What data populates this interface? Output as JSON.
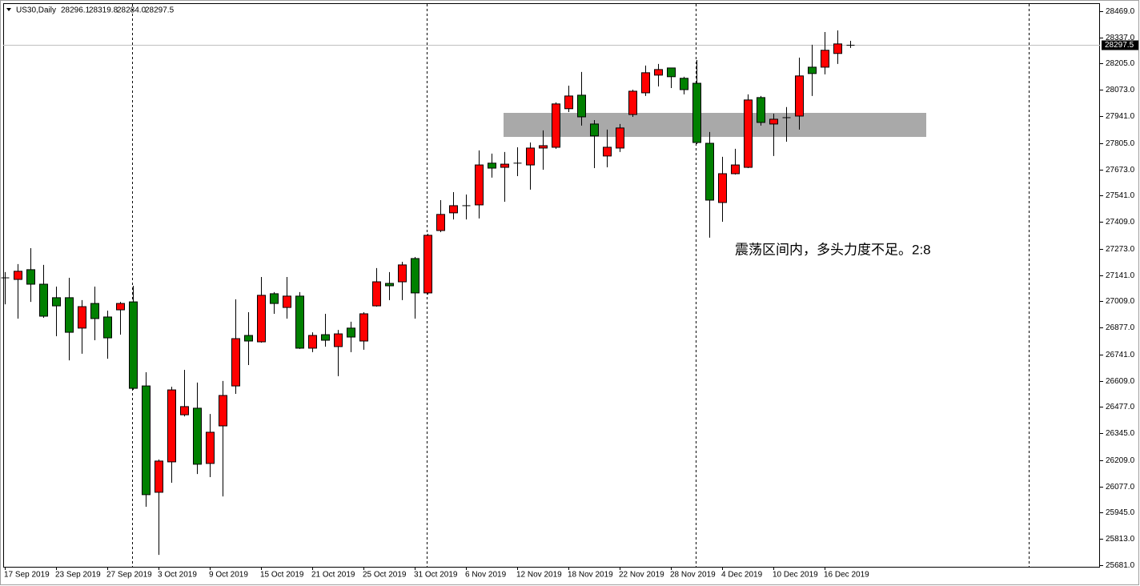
{
  "chart_data": {
    "type": "candlestick",
    "header": {
      "symbol": "US30,Daily",
      "ohlc": [
        "28296.1",
        "28319.8",
        "28284.0",
        "28297.5"
      ]
    },
    "annotation": "震荡区间内，多头力度不足。2:8",
    "categories": [
      "17 Sep 2019",
      null,
      null,
      null,
      "23 Sep 2019",
      null,
      null,
      null,
      "27 Sep 2019",
      null,
      null,
      null,
      "3 Oct 2019",
      null,
      null,
      null,
      "9 Oct 2019",
      null,
      null,
      null,
      "15 Oct 2019",
      null,
      null,
      null,
      "21 Oct 2019",
      null,
      null,
      null,
      "25 Oct 2019",
      null,
      null,
      null,
      "31 Oct 2019",
      null,
      null,
      null,
      "6 Nov 2019",
      null,
      null,
      null,
      "12 Nov 2019",
      null,
      null,
      null,
      "18 Nov 2019",
      null,
      null,
      null,
      "22 Nov 2019",
      null,
      null,
      null,
      "28 Nov 2019",
      null,
      null,
      null,
      "4 Dec 2019",
      null,
      null,
      null,
      "10 Dec 2019",
      null,
      null,
      null,
      "16 Dec 2019",
      null,
      null
    ],
    "open": [
      27127,
      27119,
      27168,
      27095,
      27027,
      27027,
      26874,
      26998,
      26930,
      26966,
      27006,
      26583,
      26048,
      26201,
      26438,
      26471,
      26193,
      26382,
      26583,
      26837,
      26805,
      27047,
      26978,
      27035,
      26773,
      26841,
      26781,
      26874,
      26809,
      26986,
      27099,
      27107,
      27224,
      27051,
      27365,
      27454,
      27490,
      27494,
      27704,
      27683,
      27704,
      27695,
      27780,
      27784,
      27978,
      28046,
      27901,
      27740,
      27780,
      27949,
      28058,
      28147,
      28183,
      28131,
      28106,
      27804,
      27506,
      27651,
      27683,
      28034,
      27901,
      27933,
      27941,
      28187,
      28187,
      28256,
      28296.1
    ],
    "high": [
      27156,
      27196,
      27276,
      27192,
      27083,
      27127,
      27015,
      27083,
      26962,
      27006,
      27087,
      26652,
      26213,
      26579,
      26664,
      26600,
      26442,
      26608,
      27019,
      26954,
      27131,
      27055,
      27131,
      27055,
      26853,
      26946,
      26865,
      26906,
      26954,
      27176,
      27156,
      27208,
      27232,
      27349,
      27518,
      27558,
      27546,
      27768,
      27752,
      27760,
      27784,
      27808,
      27869,
      28010,
      28094,
      28163,
      27921,
      27873,
      27901,
      28074,
      28195,
      28203,
      28183,
      28139,
      28223,
      27861,
      27736,
      27776,
      28050,
      28042,
      27953,
      27986,
      28235,
      28300,
      28364,
      28372,
      28319.8
    ],
    "low": [
      26994,
      26922,
      27006,
      26926,
      26833,
      26712,
      26745,
      26813,
      26720,
      26841,
      26563,
      25975,
      25733,
      26096,
      26430,
      26140,
      26124,
      26027,
      26543,
      26688,
      26801,
      26946,
      26922,
      26769,
      26753,
      26781,
      26632,
      26753,
      26765,
      26982,
      27015,
      27015,
      26922,
      27043,
      27357,
      27421,
      27421,
      27426,
      27631,
      27510,
      27639,
      27571,
      27671,
      27776,
      27961,
      27893,
      27679,
      27683,
      27760,
      27937,
      28042,
      28090,
      28082,
      28050,
      27800,
      27329,
      27409,
      27647,
      27679,
      27893,
      27740,
      27812,
      27873,
      28042,
      28151,
      28203,
      28284.0
    ],
    "close": [
      27127,
      27160,
      27095,
      26934,
      26986,
      26853,
      26982,
      26922,
      26825,
      26998,
      26571,
      26036,
      26205,
      26563,
      26479,
      26189,
      26350,
      26535,
      26821,
      26809,
      27039,
      26998,
      27035,
      26773,
      26837,
      26813,
      26845,
      26829,
      26946,
      27107,
      27087,
      27192,
      27051,
      27341,
      27446,
      27490,
      27490,
      27695,
      27679,
      27699,
      27704,
      27780,
      27792,
      28002,
      28042,
      27937,
      27841,
      27784,
      27881,
      28066,
      28159,
      28175,
      28139,
      28074,
      27808,
      27518,
      27651,
      27695,
      28022,
      27909,
      27925,
      27933,
      28143,
      28155,
      28272,
      28304,
      28297.5
    ],
    "up_color": "#ff0000",
    "down_color": "#008000",
    "zone": [
      27836,
      27957
    ],
    "ylim": [
      25673,
      28525
    ],
    "yticks": [
      {
        "value": 28469,
        "label": "28469.0"
      },
      {
        "value": 28337,
        "label": "28337.0"
      },
      {
        "value": 28205,
        "label": "28205.0"
      },
      {
        "value": 28073,
        "label": "28073.0"
      },
      {
        "value": 27941,
        "label": "27941.0"
      },
      {
        "value": 27805,
        "label": "27805.0"
      },
      {
        "value": 27673,
        "label": "27673.0"
      },
      {
        "value": 27541,
        "label": "27541.0"
      },
      {
        "value": 27409,
        "label": "27409.0"
      },
      {
        "value": 27273,
        "label": "27273.0"
      },
      {
        "value": 27141,
        "label": "27141.0"
      },
      {
        "value": 27009,
        "label": "27009.0"
      },
      {
        "value": 26877,
        "label": "26877.0"
      },
      {
        "value": 26741,
        "label": "26741.0"
      },
      {
        "value": 26609,
        "label": "26609.0"
      },
      {
        "value": 26477,
        "label": "26477.0"
      },
      {
        "value": 26345,
        "label": "26345.0"
      },
      {
        "value": 26209,
        "label": "26209.0"
      },
      {
        "value": 26077,
        "label": "26077.0"
      },
      {
        "value": 25945,
        "label": "25945.0"
      },
      {
        "value": 25813,
        "label": "25813.0"
      },
      {
        "value": 25681,
        "label": "25681.0"
      }
    ]
  }
}
